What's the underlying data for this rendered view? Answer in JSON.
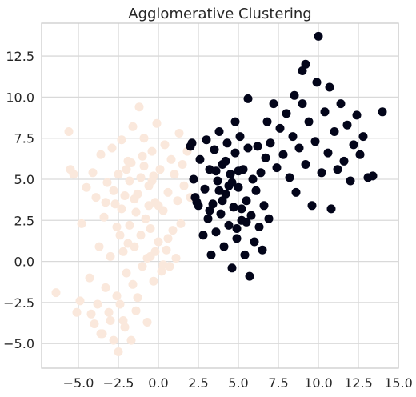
{
  "chart_data": {
    "type": "scatter",
    "title": "Agglomerative Clustering",
    "xlabel": "",
    "ylabel": "",
    "xlim": [
      -7.3,
      15.0
    ],
    "ylim": [
      -6.5,
      14.5
    ],
    "x_ticks": [
      -5.0,
      -2.5,
      0.0,
      2.5,
      5.0,
      7.5,
      10.0,
      12.5,
      15.0
    ],
    "x_tick_labels": [
      "−5.0",
      "−2.5",
      "0.0",
      "2.5",
      "5.0",
      "7.5",
      "10.0",
      "12.5",
      "15.0"
    ],
    "y_ticks": [
      -5.0,
      -2.5,
      0.0,
      2.5,
      5.0,
      7.5,
      10.0,
      12.5
    ],
    "y_tick_labels": [
      "−5.0",
      "−2.5",
      "0.0",
      "2.5",
      "5.0",
      "7.5",
      "10.0",
      "12.5"
    ],
    "grid": true,
    "legend": "none",
    "series": [
      {
        "color": "#fae8dc",
        "points": [
          [
            -6.4,
            -1.9
          ],
          [
            -5.6,
            7.9
          ],
          [
            -5.5,
            5.6
          ],
          [
            -5.3,
            5.3
          ],
          [
            -5.1,
            -3.1
          ],
          [
            -4.9,
            -2.4
          ],
          [
            -4.8,
            2.3
          ],
          [
            -4.5,
            4.5
          ],
          [
            -4.3,
            -1.0
          ],
          [
            -4.1,
            5.4
          ],
          [
            -4.0,
            -3.8
          ],
          [
            -3.9,
            3.9
          ],
          [
            -3.8,
            -2.6
          ],
          [
            -3.7,
            0.9
          ],
          [
            -3.6,
            6.5
          ],
          [
            -3.5,
            -4.4
          ],
          [
            -3.4,
            2.7
          ],
          [
            -3.3,
            -1.6
          ],
          [
            -3.2,
            4.8
          ],
          [
            -3.1,
            -3.1
          ],
          [
            -3.0,
            0.3
          ],
          [
            -2.9,
            6.9
          ],
          [
            -2.8,
            -4.8
          ],
          [
            -2.7,
            3.5
          ],
          [
            -2.6,
            -2.1
          ],
          [
            -2.5,
            5.3
          ],
          [
            -2.5,
            -5.5
          ],
          [
            -2.4,
            1.6
          ],
          [
            -2.3,
            7.4
          ],
          [
            -2.2,
            -3.6
          ],
          [
            -2.1,
            4.0
          ],
          [
            -2.0,
            -0.7
          ],
          [
            -1.9,
            6.1
          ],
          [
            -1.8,
            2.2
          ],
          [
            -1.7,
            -4.8
          ],
          [
            -1.6,
            8.2
          ],
          [
            -1.5,
            0.9
          ],
          [
            -1.4,
            3.0
          ],
          [
            -1.3,
            -2.2
          ],
          [
            -1.2,
            9.4
          ],
          [
            -1.1,
            5.1
          ],
          [
            -1.0,
            -0.3
          ],
          [
            -0.9,
            7.5
          ],
          [
            -0.8,
            2.6
          ],
          [
            -0.7,
            -3.7
          ],
          [
            -0.6,
            4.6
          ],
          [
            -0.5,
            0.3
          ],
          [
            -0.4,
            6.7
          ],
          [
            -0.3,
            -1.2
          ],
          [
            -0.2,
            3.6
          ],
          [
            -0.1,
            8.4
          ],
          [
            0.0,
            1.2
          ],
          [
            0.1,
            5.6
          ],
          [
            0.2,
            -0.6
          ],
          [
            0.3,
            3.1
          ],
          [
            0.4,
            7.1
          ],
          [
            0.5,
            0.7
          ],
          [
            0.6,
            4.2
          ],
          [
            0.7,
            -0.3
          ],
          [
            0.8,
            6.2
          ],
          [
            0.9,
            1.9
          ],
          [
            1.0,
            5.3
          ],
          [
            1.1,
            0.2
          ],
          [
            1.2,
            3.7
          ],
          [
            1.3,
            7.8
          ],
          [
            1.4,
            2.3
          ],
          [
            1.5,
            5.9
          ],
          [
            1.6,
            4.6
          ],
          [
            1.8,
            6.7
          ],
          [
            2.0,
            3.9
          ],
          [
            -2.8,
            4.3
          ],
          [
            -2.3,
            3.2
          ],
          [
            -1.8,
            4.9
          ],
          [
            -1.3,
            4.1
          ],
          [
            -0.9,
            5.8
          ],
          [
            -0.4,
            4.9
          ],
          [
            -2.0,
            5.6
          ],
          [
            -1.5,
            3.8
          ],
          [
            -0.6,
            3.4
          ],
          [
            -3.3,
            3.6
          ],
          [
            -2.6,
            2.1
          ],
          [
            -1.9,
            1.1
          ],
          [
            -1.1,
            1.6
          ],
          [
            -0.2,
            0.6
          ],
          [
            0.3,
            -0.2
          ],
          [
            -0.7,
            0.2
          ],
          [
            -1.6,
            -1.4
          ],
          [
            -2.4,
            -2.6
          ],
          [
            -3.0,
            -3.6
          ],
          [
            -2.1,
            -4.0
          ],
          [
            -3.6,
            -4.4
          ],
          [
            -4.2,
            -3.2
          ],
          [
            -1.4,
            -3.0
          ],
          [
            -1.0,
            6.4
          ],
          [
            -0.5,
            2.0
          ],
          [
            0.0,
            3.4
          ],
          [
            0.6,
            1.4
          ],
          [
            -0.3,
            5.2
          ],
          [
            -1.7,
            6.0
          ],
          [
            -2.2,
            0.6
          ]
        ]
      },
      {
        "color": "#03051a",
        "points": [
          [
            2.0,
            7.0
          ],
          [
            2.2,
            5.0
          ],
          [
            2.4,
            3.6
          ],
          [
            2.6,
            6.2
          ],
          [
            2.8,
            1.6
          ],
          [
            2.9,
            4.4
          ],
          [
            3.0,
            7.4
          ],
          [
            3.1,
            2.6
          ],
          [
            3.2,
            5.6
          ],
          [
            3.3,
            0.4
          ],
          [
            3.4,
            3.5
          ],
          [
            3.5,
            6.8
          ],
          [
            3.6,
            1.8
          ],
          [
            3.7,
            4.9
          ],
          [
            3.8,
            7.9
          ],
          [
            3.9,
            2.9
          ],
          [
            4.0,
            5.9
          ],
          [
            4.1,
            0.9
          ],
          [
            4.2,
            4.1
          ],
          [
            4.3,
            7.2
          ],
          [
            4.4,
            2.2
          ],
          [
            4.5,
            5.3
          ],
          [
            4.6,
            -0.4
          ],
          [
            4.7,
            3.3
          ],
          [
            4.8,
            6.6
          ],
          [
            4.9,
            1.4
          ],
          [
            5.0,
            4.5
          ],
          [
            5.1,
            7.6
          ],
          [
            5.2,
            2.5
          ],
          [
            5.3,
            5.6
          ],
          [
            5.4,
            0.4
          ],
          [
            5.5,
            3.7
          ],
          [
            5.6,
            6.9
          ],
          [
            5.7,
            -0.9
          ],
          [
            5.8,
            2.8
          ],
          [
            5.9,
            5.0
          ],
          [
            6.0,
            1.2
          ],
          [
            6.1,
            4.3
          ],
          [
            6.2,
            7.0
          ],
          [
            6.3,
            2.1
          ],
          [
            6.4,
            5.4
          ],
          [
            6.5,
            0.7
          ],
          [
            6.6,
            3.4
          ],
          [
            6.7,
            6.3
          ],
          [
            6.8,
            8.5
          ],
          [
            6.9,
            2.6
          ],
          [
            7.0,
            7.2
          ],
          [
            7.2,
            9.6
          ],
          [
            7.4,
            5.7
          ],
          [
            7.6,
            8.1
          ],
          [
            7.8,
            6.5
          ],
          [
            8.0,
            9.0
          ],
          [
            8.2,
            5.1
          ],
          [
            8.4,
            7.6
          ],
          [
            8.6,
            4.2
          ],
          [
            8.8,
            6.9
          ],
          [
            9.0,
            9.6
          ],
          [
            9.2,
            5.9
          ],
          [
            9.4,
            8.5
          ],
          [
            9.6,
            3.4
          ],
          [
            9.8,
            7.3
          ],
          [
            10.0,
            13.7
          ],
          [
            9.2,
            12.0
          ],
          [
            9.0,
            11.6
          ],
          [
            10.2,
            5.4
          ],
          [
            10.4,
            9.1
          ],
          [
            10.6,
            6.6
          ],
          [
            10.8,
            3.2
          ],
          [
            11.0,
            7.9
          ],
          [
            11.2,
            5.6
          ],
          [
            11.4,
            9.6
          ],
          [
            11.6,
            6.1
          ],
          [
            11.8,
            8.3
          ],
          [
            12.0,
            4.9
          ],
          [
            12.2,
            7.1
          ],
          [
            12.4,
            8.9
          ],
          [
            12.6,
            6.5
          ],
          [
            12.8,
            7.6
          ],
          [
            13.1,
            5.1
          ],
          [
            13.4,
            5.2
          ],
          [
            14.0,
            9.1
          ],
          [
            10.7,
            10.6
          ],
          [
            9.9,
            10.9
          ],
          [
            8.5,
            10.1
          ],
          [
            5.6,
            9.9
          ],
          [
            4.8,
            8.5
          ],
          [
            2.1,
            7.2
          ],
          [
            2.3,
            3.9
          ],
          [
            2.5,
            3.4
          ],
          [
            3.2,
            3.1
          ],
          [
            4.4,
            4.6
          ],
          [
            4.6,
            4.8
          ],
          [
            5.0,
            5.5
          ],
          [
            4.0,
            3.7
          ],
          [
            3.6,
            5.5
          ],
          [
            5.2,
            3.2
          ],
          [
            4.9,
            2.0
          ],
          [
            5.5,
            2.4
          ],
          [
            3.8,
            4.3
          ],
          [
            4.2,
            6.1
          ]
        ]
      }
    ]
  }
}
